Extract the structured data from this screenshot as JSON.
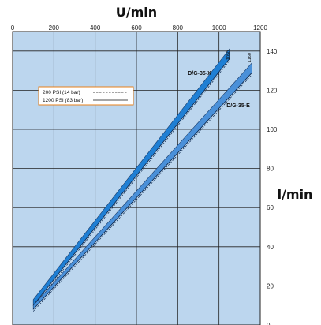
{
  "chart_data": {
    "type": "line",
    "xlabel": "U/min",
    "ylabel": "l/min",
    "xlim": [
      0,
      1200
    ],
    "ylim": [
      0,
      150
    ],
    "x_ticks": [
      "0",
      "200",
      "400",
      "600",
      "800",
      "1000",
      "1200"
    ],
    "x_tick_values": [
      0,
      200,
      400,
      600,
      800,
      1000,
      1200
    ],
    "y_ticks": [
      "0",
      "20",
      "40",
      "60",
      "80",
      "100",
      "120",
      "140"
    ],
    "y_tick_values": [
      0,
      20,
      40,
      60,
      80,
      100,
      120,
      140
    ],
    "grid": true,
    "legend_position": "upper-left",
    "legend": [
      {
        "label": "200 PSI (14 bar)",
        "style": "dashed"
      },
      {
        "label": "1200 PSI (83 bar)",
        "style": "solid"
      }
    ],
    "series": [
      {
        "name": "D/G-35-X",
        "end_label": "1050",
        "color": "#1f7fd4",
        "band_upper": {
          "x": [
            100,
            1050
          ],
          "y": [
            13,
            141
          ]
        },
        "band_lower": {
          "x": [
            100,
            1050
          ],
          "y": [
            10,
            136
          ]
        }
      },
      {
        "name": "D/G-35-E",
        "end_label": "1160",
        "color": "#4a90d9",
        "band_upper": {
          "x": [
            100,
            1160
          ],
          "y": [
            10,
            134
          ]
        },
        "band_lower": {
          "x": [
            100,
            1160
          ],
          "y": [
            8,
            129
          ]
        }
      }
    ]
  },
  "colors": {
    "plot_background": "#bcd6ee",
    "grid": "#222222",
    "series_dark": "#1f7fd4",
    "series_light": "#4a90d9",
    "legend_border": "#e8801a"
  }
}
